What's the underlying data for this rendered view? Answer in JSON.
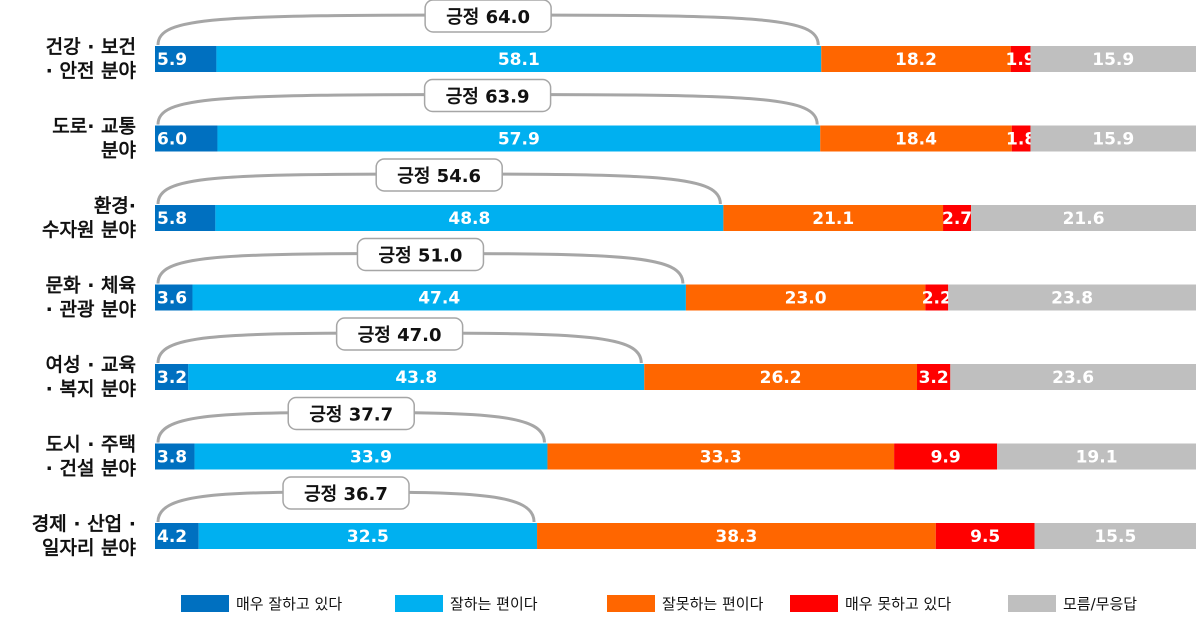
{
  "chart_data": {
    "type": "bar",
    "orientation": "horizontal",
    "stacked": true,
    "normalized": true,
    "xlim": [
      0,
      100
    ],
    "grid": false,
    "legend_position": "bottom",
    "categories": [
      [
        "건강 · 보건",
        "· 안전 분야"
      ],
      [
        "도로· 교통",
        "분야"
      ],
      [
        "환경·",
        "수자원 분야"
      ],
      [
        "문화 · 체육",
        "· 관광 분야"
      ],
      [
        "여성 · 교육",
        "· 복지 분야"
      ],
      [
        "도시 · 주택",
        "· 건설 분야"
      ],
      [
        "경제 · 산업 ·",
        "일자리 분야"
      ]
    ],
    "series": [
      {
        "name": "매우 잘하고 있다",
        "color": "#0070C0",
        "values": [
          5.9,
          6.0,
          5.8,
          3.6,
          3.2,
          3.8,
          4.2
        ]
      },
      {
        "name": "잘하는 편이다",
        "color": "#00B0F0",
        "values": [
          58.1,
          57.9,
          48.8,
          47.4,
          43.8,
          33.9,
          32.5
        ]
      },
      {
        "name": "잘못하는 편이다",
        "color": "#FF6600",
        "values": [
          18.2,
          18.4,
          21.1,
          23.0,
          26.2,
          33.3,
          38.3
        ]
      },
      {
        "name": "매우 못하고 있다",
        "color": "#FF0000",
        "values": [
          1.9,
          1.8,
          2.7,
          2.2,
          3.2,
          9.9,
          9.5
        ]
      },
      {
        "name": "모름/무응답",
        "color": "#BFBFBF",
        "values": [
          15.9,
          15.9,
          21.6,
          23.8,
          23.6,
          19.1,
          15.5
        ]
      }
    ],
    "positive_prefix": "긍정",
    "positive_totals": [
      64.0,
      63.9,
      54.6,
      51.0,
      47.0,
      37.7,
      36.7
    ]
  }
}
